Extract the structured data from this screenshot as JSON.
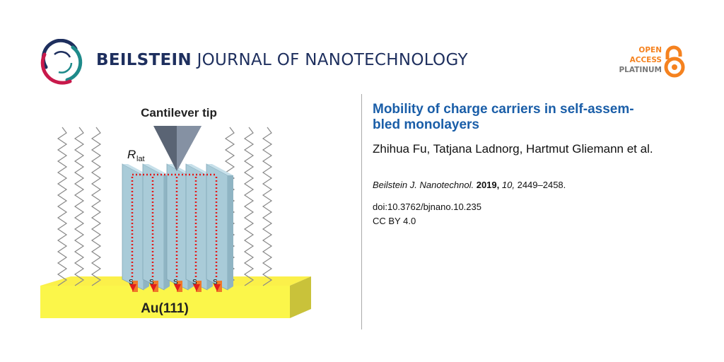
{
  "journal": {
    "name_bold": "BEILSTEIN",
    "name_light": "JOURNAL OF NANOTECHNOLOGY",
    "logo_colors": {
      "navy": "#1e2f5e",
      "crimson": "#c8194b",
      "teal": "#1e8a8a"
    }
  },
  "open_access": {
    "line1": "OPEN",
    "line2": "ACCESS",
    "line3": "PLATINUM",
    "icon": "open-lock-icon",
    "color": "#f5821f"
  },
  "article": {
    "title": "Mobility of charge carriers in self-assem-bled monolayers",
    "title_line1": "Mobility of charge carriers in self-assem-",
    "title_line2": "bled monolayers",
    "authors": "Zhihua Fu, Tatjana Ladnorg, Hartmut Gliemann et al.",
    "citation": {
      "journal": "Beilstein J. Nanotechnol.",
      "year": "2019,",
      "volume": "10,",
      "pages": "2449–2458."
    },
    "doi": "doi:10.3762/bjnano.10.235",
    "license": "CC BY 4.0",
    "title_color": "#1a5ea8"
  },
  "figure": {
    "tip_label": "Cantilever tip",
    "r_label": "R",
    "r_sub": "lat",
    "sulfur_label": "S",
    "substrate_label": "Au(111)"
  }
}
